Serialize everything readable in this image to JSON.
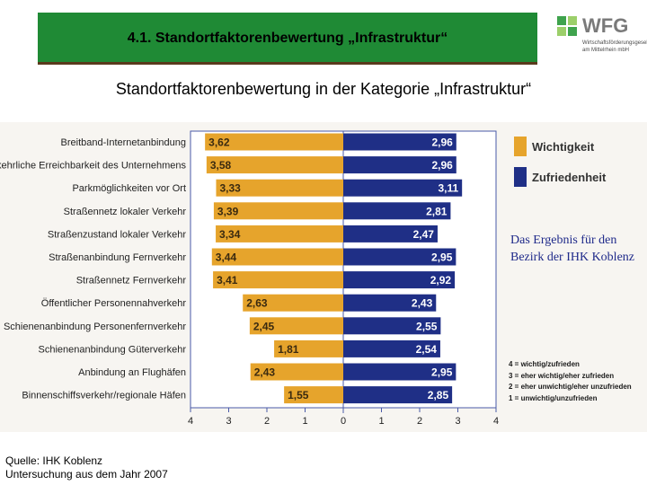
{
  "header": {
    "title": "4.1. Standortfaktorenbewertung „Infrastruktur“",
    "bar_color": "#1f8a35",
    "logo_text": "WFG",
    "logo_sub": "Wirtschaftsförderungsgesellschaft am Mittelrhein mbH"
  },
  "subtitle": "Standortfaktorenbewertung in der Kategorie „Infrastruktur“",
  "chart_data": {
    "type": "bar",
    "orientation": "horizontal-diverging",
    "categories": [
      "Breitband-Internetanbindung",
      "Verkehrliche Erreichbarkeit des Unternehmens",
      "Parkmöglichkeiten vor Ort",
      "Straßennetz lokaler Verkehr",
      "Straßenzustand lokaler Verkehr",
      "Straßenanbindung Fernverkehr",
      "Straßennetz Fernverkehr",
      "Öffentlicher Personennahverkehr",
      "Schienenanbindung Personenfernverkehr",
      "Schienenanbindung Güterverkehr",
      "Anbindung an Flughäfen",
      "Binnenschiffsverkehr/regionale Häfen"
    ],
    "series": [
      {
        "name": "Wichtigkeit",
        "color": "#e6a42c",
        "direction": "left",
        "values": [
          3.62,
          3.58,
          3.33,
          3.39,
          3.34,
          3.44,
          3.41,
          2.63,
          2.45,
          1.81,
          2.43,
          1.55
        ],
        "labels": [
          "3,62",
          "3,58",
          "3,33",
          "3,39",
          "3,34",
          "3,44",
          "3,41",
          "2,63",
          "2,45",
          "1,81",
          "2,43",
          "1,55"
        ]
      },
      {
        "name": "Zufriedenheit",
        "color": "#1f2f86",
        "direction": "right",
        "values": [
          2.96,
          2.96,
          3.11,
          2.81,
          2.47,
          2.95,
          2.92,
          2.43,
          2.55,
          2.54,
          2.95,
          2.85
        ],
        "labels": [
          "2,96",
          "2,96",
          "3,11",
          "2,81",
          "2,47",
          "2,95",
          "2,92",
          "2,43",
          "2,55",
          "2,54",
          "2,95",
          "2,85"
        ]
      }
    ],
    "xlim": [
      -4,
      4
    ],
    "x_ticks": [
      "4",
      "3",
      "2",
      "1",
      "0",
      "1",
      "2",
      "3",
      "4"
    ]
  },
  "legend": {
    "items": [
      {
        "label": "Wichtigkeit",
        "color": "#e6a42c"
      },
      {
        "label": "Zufriedenheit",
        "color": "#1f2f86"
      }
    ]
  },
  "note": "Das Ergebnis für den Bezirk der IHK Koblenz",
  "scale": [
    "4 = wichtig/zufrieden",
    "3 = eher wichtig/eher zufrieden",
    "2 = eher unwichtig/eher unzufrieden",
    "1 = unwichtig/unzufrieden"
  ],
  "source": {
    "line1": "Quelle: IHK Koblenz",
    "line2": "Untersuchung aus dem Jahr 2007"
  }
}
